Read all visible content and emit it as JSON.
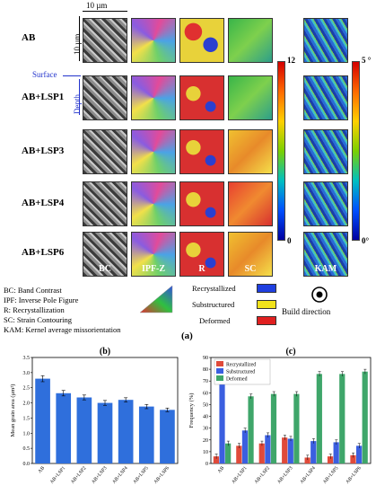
{
  "panel_a": {
    "scale_bar_h": "10 µm",
    "scale_bar_v": "10 µm",
    "surface_label": "Surface",
    "depth_label": "Depth",
    "rows": [
      "AB",
      "AB+LSP1",
      "AB+LSP3",
      "AB+LSP4",
      "AB+LSP6"
    ],
    "column_labels": [
      "BC",
      "IPF-Z",
      "R",
      "SC",
      "KAM"
    ],
    "colorbar1": {
      "max": "12",
      "min": "0"
    },
    "colorbar2": {
      "max": "5 °",
      "min": "0°"
    },
    "definitions": [
      "BC: Band Contrast",
      "IPF: Inverse Pole Figure",
      "R: Recrystallization",
      "SC: Strain Contouring",
      "KAM: Kernel average missorientation"
    ],
    "r_legend": [
      {
        "label": "Recrystallized",
        "color": "#1f3fe0"
      },
      {
        "label": "Substructured",
        "color": "#f2e31b"
      },
      {
        "label": "Deformed",
        "color": "#e02020"
      }
    ],
    "build_direction": "Build direction",
    "panel_label": "(a)"
  },
  "chart_data": [
    {
      "type": "bar",
      "panel_label": "(b)",
      "ylabel": "Mean grain area (µm²)",
      "categories": [
        "AB",
        "AB+LSP1",
        "AB+LSP2",
        "AB+LSP3",
        "AB+LSP4",
        "AB+LSP5",
        "AB+LSP6"
      ],
      "values": [
        2.8,
        2.32,
        2.18,
        2.0,
        2.1,
        1.88,
        1.77
      ],
      "errors": [
        0.1,
        0.09,
        0.08,
        0.08,
        0.07,
        0.07,
        0.06
      ],
      "ylim": [
        0,
        3.5
      ],
      "yticks": [
        "0.0",
        "0.5",
        "1.0",
        "1.5",
        "2.0",
        "2.5",
        "3.0",
        "3.5"
      ],
      "color": "#2f6fdc"
    },
    {
      "type": "bar",
      "panel_label": "(c)",
      "ylabel": "Frequency (%)",
      "categories": [
        "AB",
        "AB+LSP1",
        "AB+LSP2",
        "AB+LSP3",
        "AB+LSP4",
        "AB+LSP5",
        "AB+LSP6"
      ],
      "series": [
        {
          "name": "Recrystallized",
          "color": "#e04a3a",
          "values": [
            6,
            15,
            17,
            22,
            5,
            6,
            7
          ]
        },
        {
          "name": "Substructured",
          "color": "#3b5fe0",
          "values": [
            77,
            28,
            24,
            21,
            19,
            18,
            15
          ]
        },
        {
          "name": "Deformed",
          "color": "#3fa66a",
          "values": [
            17,
            57,
            59,
            59,
            76,
            76,
            78
          ]
        }
      ],
      "ylim": [
        0,
        90
      ],
      "yticks": [
        "0",
        "10",
        "20",
        "30",
        "40",
        "50",
        "60",
        "70",
        "80",
        "90"
      ],
      "legend_position": "top-left"
    }
  ]
}
